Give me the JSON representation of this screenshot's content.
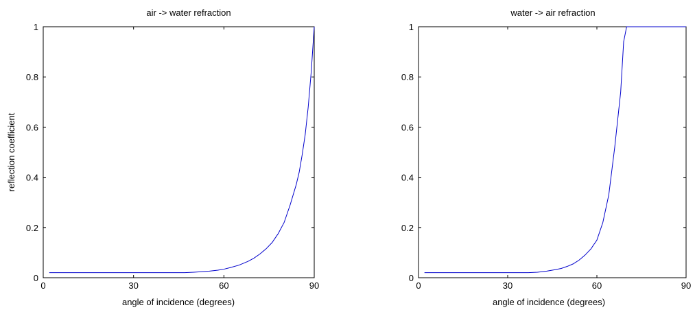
{
  "chart_data": [
    {
      "type": "line",
      "title": "air -> water refraction",
      "xlabel": "angle of incidence (degrees)",
      "ylabel": "reflection coefficient",
      "xlim": [
        0,
        90
      ],
      "ylim": [
        0,
        1
      ],
      "xticks": [
        0,
        30,
        60,
        90
      ],
      "xtick_labels": [
        "0",
        "30",
        "60",
        "90"
      ],
      "yticks": [
        0,
        0.2,
        0.4,
        0.6,
        0.8,
        1
      ],
      "ytick_labels": [
        "0",
        "0.2",
        "0.4",
        "0.6",
        "0.8",
        "1"
      ],
      "grid": false,
      "color": "#0000cc",
      "series": [
        {
          "x": [
            2,
            10,
            20,
            30,
            40,
            47,
            50,
            55,
            58,
            60,
            62,
            65,
            68,
            70,
            72,
            74,
            76,
            78,
            80,
            82,
            84,
            85,
            86,
            87,
            88,
            89,
            90
          ],
          "y": [
            0.02,
            0.02,
            0.02,
            0.02,
            0.02,
            0.02,
            0.022,
            0.026,
            0.03,
            0.034,
            0.04,
            0.05,
            0.065,
            0.078,
            0.095,
            0.115,
            0.14,
            0.175,
            0.22,
            0.29,
            0.37,
            0.42,
            0.49,
            0.57,
            0.68,
            0.82,
            1.0
          ]
        }
      ]
    },
    {
      "type": "line",
      "title": "water -> air refraction",
      "xlabel": "angle of incidence (degrees)",
      "ylabel": "",
      "xlim": [
        0,
        90
      ],
      "ylim": [
        0,
        1
      ],
      "xticks": [
        0,
        30,
        60,
        90
      ],
      "xtick_labels": [
        "0",
        "30",
        "60",
        "90"
      ],
      "yticks": [
        0,
        0.2,
        0.4,
        0.6,
        0.8,
        1
      ],
      "ytick_labels": [
        "0",
        "0.2",
        "0.4",
        "0.6",
        "0.8",
        "1"
      ],
      "grid": false,
      "color": "#0000cc",
      "series": [
        {
          "x": [
            2,
            10,
            20,
            30,
            37,
            40,
            43,
            46,
            48,
            50,
            52,
            54,
            56,
            58,
            60,
            62,
            64,
            66,
            67,
            68,
            69,
            70,
            71,
            75,
            80,
            90
          ],
          "y": [
            0.02,
            0.02,
            0.02,
            0.02,
            0.02,
            0.022,
            0.026,
            0.032,
            0.037,
            0.045,
            0.055,
            0.07,
            0.09,
            0.115,
            0.15,
            0.22,
            0.33,
            0.52,
            0.63,
            0.74,
            0.94,
            1.0,
            1.0,
            1.0,
            1.0,
            1.0
          ]
        }
      ]
    }
  ]
}
